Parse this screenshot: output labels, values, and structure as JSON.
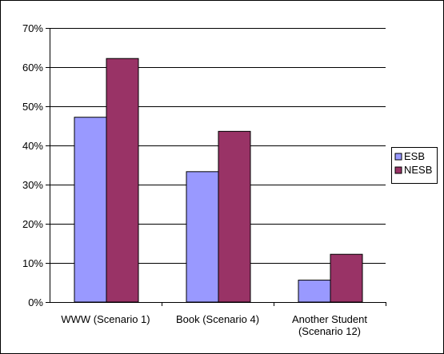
{
  "chart_data": {
    "type": "bar",
    "categories": [
      [
        "WWW (Scenario 1)"
      ],
      [
        "Book (Scenario 4)"
      ],
      [
        "Another Student",
        "(Scenario 12)"
      ]
    ],
    "series": [
      {
        "name": "ESB",
        "values": [
          47.2,
          33.3,
          5.6
        ],
        "color": "#9999ff"
      },
      {
        "name": "NESB",
        "values": [
          62.2,
          43.6,
          12.2
        ],
        "color": "#993366"
      }
    ],
    "ylim": [
      0,
      70
    ],
    "yticks": [
      0,
      10,
      20,
      30,
      40,
      50,
      60,
      70
    ],
    "ytick_labels": [
      "0%",
      "10%",
      "20%",
      "30%",
      "40%",
      "50%",
      "60%",
      "70%"
    ],
    "grid": true,
    "legend_position": "right"
  }
}
